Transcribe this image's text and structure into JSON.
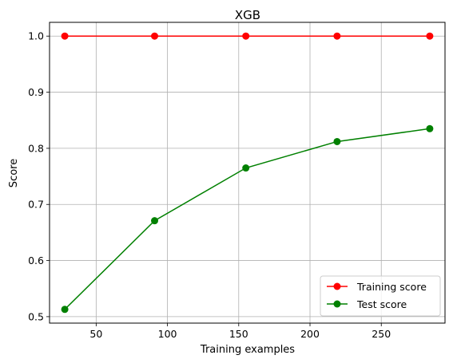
{
  "chart_data": {
    "type": "line",
    "title": "XGB",
    "xlabel": "Training examples",
    "ylabel": "Score",
    "xlim": [
      17.3,
      294.7
    ],
    "ylim": [
      0.4885,
      1.0245
    ],
    "xticks": [
      50,
      100,
      150,
      200,
      250
    ],
    "yticks": [
      0.5,
      0.6,
      0.7,
      0.8,
      0.9,
      1.0
    ],
    "ytick_labels": [
      "0.5",
      "0.6",
      "0.7",
      "0.8",
      "0.9",
      "1.0"
    ],
    "x": [
      28,
      91,
      155,
      219,
      284
    ],
    "grid": true,
    "legend_position": "lower-right",
    "series": [
      {
        "name": "Training score",
        "color": "#ff0000",
        "values": [
          1.0,
          1.0,
          1.0,
          1.0,
          1.0
        ]
      },
      {
        "name": "Test score",
        "color": "#008000",
        "values": [
          0.513,
          0.671,
          0.765,
          0.812,
          0.835
        ]
      }
    ]
  }
}
